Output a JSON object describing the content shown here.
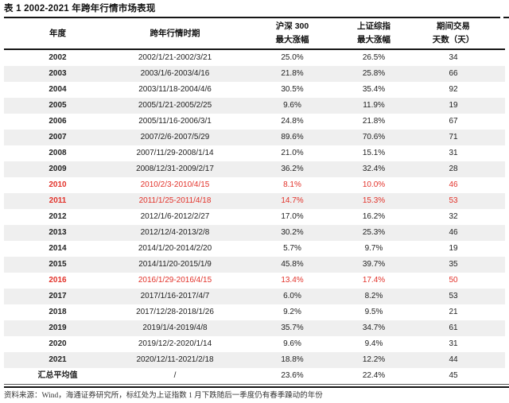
{
  "title": "表 1 2002-2021 年跨年行情市场表现",
  "colors": {
    "highlight_red": "#e2322a",
    "row_alt_bg": "#efefef",
    "rule_black": "#161616"
  },
  "table": {
    "columns": [
      {
        "lines": [
          "年度",
          ""
        ]
      },
      {
        "lines": [
          "跨年行情时期",
          ""
        ]
      },
      {
        "lines": [
          "沪深 300",
          "最大涨幅"
        ]
      },
      {
        "lines": [
          "上证综指",
          "最大涨幅"
        ]
      },
      {
        "lines": [
          "期间交易",
          "天数（天）"
        ]
      }
    ],
    "rows": [
      {
        "year": "2002",
        "period": "2002/1/21-2002/3/21",
        "hs300_max_gain": "25.0%",
        "sse_max_gain": "26.5%",
        "trading_days": "34",
        "highlighted": false
      },
      {
        "year": "2003",
        "period": "2003/1/6-2003/4/16",
        "hs300_max_gain": "21.8%",
        "sse_max_gain": "25.8%",
        "trading_days": "66",
        "highlighted": false
      },
      {
        "year": "2004",
        "period": "2003/11/18-2004/4/6",
        "hs300_max_gain": "30.5%",
        "sse_max_gain": "35.4%",
        "trading_days": "92",
        "highlighted": false
      },
      {
        "year": "2005",
        "period": "2005/1/21-2005/2/25",
        "hs300_max_gain": "9.6%",
        "sse_max_gain": "11.9%",
        "trading_days": "19",
        "highlighted": false
      },
      {
        "year": "2006",
        "period": "2005/11/16-2006/3/1",
        "hs300_max_gain": "24.8%",
        "sse_max_gain": "21.8%",
        "trading_days": "67",
        "highlighted": false
      },
      {
        "year": "2007",
        "period": "2007/2/6-2007/5/29",
        "hs300_max_gain": "89.6%",
        "sse_max_gain": "70.6%",
        "trading_days": "71",
        "highlighted": false
      },
      {
        "year": "2008",
        "period": "2007/11/29-2008/1/14",
        "hs300_max_gain": "21.0%",
        "sse_max_gain": "15.1%",
        "trading_days": "31",
        "highlighted": false
      },
      {
        "year": "2009",
        "period": "2008/12/31-2009/2/17",
        "hs300_max_gain": "36.2%",
        "sse_max_gain": "32.4%",
        "trading_days": "28",
        "highlighted": false
      },
      {
        "year": "2010",
        "period": "2010/2/3-2010/4/15",
        "hs300_max_gain": "8.1%",
        "sse_max_gain": "10.0%",
        "trading_days": "46",
        "highlighted": true
      },
      {
        "year": "2011",
        "period": "2011/1/25-2011/4/18",
        "hs300_max_gain": "14.7%",
        "sse_max_gain": "15.3%",
        "trading_days": "53",
        "highlighted": true
      },
      {
        "year": "2012",
        "period": "2012/1/6-2012/2/27",
        "hs300_max_gain": "17.0%",
        "sse_max_gain": "16.2%",
        "trading_days": "32",
        "highlighted": false
      },
      {
        "year": "2013",
        "period": "2012/12/4-2013/2/8",
        "hs300_max_gain": "30.2%",
        "sse_max_gain": "25.3%",
        "trading_days": "46",
        "highlighted": false
      },
      {
        "year": "2014",
        "period": "2014/1/20-2014/2/20",
        "hs300_max_gain": "5.7%",
        "sse_max_gain": "9.7%",
        "trading_days": "19",
        "highlighted": false
      },
      {
        "year": "2015",
        "period": "2014/11/20-2015/1/9",
        "hs300_max_gain": "45.8%",
        "sse_max_gain": "39.7%",
        "trading_days": "35",
        "highlighted": false
      },
      {
        "year": "2016",
        "period": "2016/1/29-2016/4/15",
        "hs300_max_gain": "13.4%",
        "sse_max_gain": "17.4%",
        "trading_days": "50",
        "highlighted": true
      },
      {
        "year": "2017",
        "period": "2017/1/16-2017/4/7",
        "hs300_max_gain": "6.0%",
        "sse_max_gain": "8.2%",
        "trading_days": "53",
        "highlighted": false
      },
      {
        "year": "2018",
        "period": "2017/12/28-2018/1/26",
        "hs300_max_gain": "9.2%",
        "sse_max_gain": "9.5%",
        "trading_days": "21",
        "highlighted": false
      },
      {
        "year": "2019",
        "period": "2019/1/4-2019/4/8",
        "hs300_max_gain": "35.7%",
        "sse_max_gain": "34.7%",
        "trading_days": "61",
        "highlighted": false
      },
      {
        "year": "2020",
        "period": "2019/12/2-2020/1/14",
        "hs300_max_gain": "9.6%",
        "sse_max_gain": "9.4%",
        "trading_days": "31",
        "highlighted": false
      },
      {
        "year": "2021",
        "period": "2020/12/11-2021/2/18",
        "hs300_max_gain": "18.8%",
        "sse_max_gain": "12.2%",
        "trading_days": "44",
        "highlighted": false
      },
      {
        "year": "汇总平均值",
        "period": "/",
        "hs300_max_gain": "23.6%",
        "sse_max_gain": "22.4%",
        "trading_days": "45",
        "highlighted": false,
        "summary": true
      }
    ]
  },
  "footnote": "资料来源：Wind，海通证券研究所，标红处为上证指数 1 月下跌随后一季度仍有春季躁动的年份"
}
